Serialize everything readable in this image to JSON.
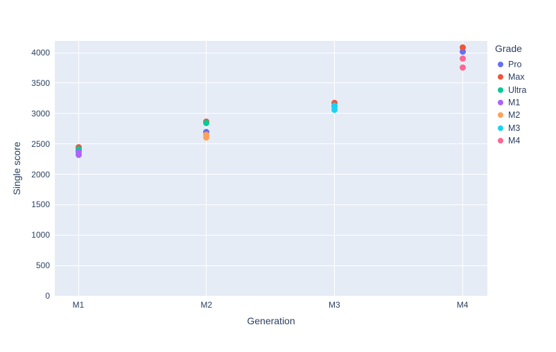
{
  "chart_data": {
    "type": "scatter",
    "title": "",
    "xlabel": "Generation",
    "ylabel": "Single score",
    "categories": [
      "M1",
      "M2",
      "M3",
      "M4"
    ],
    "yticks": [
      0,
      500,
      1000,
      1500,
      2000,
      2500,
      3000,
      3500,
      4000
    ],
    "ylim": [
      0,
      4194
    ],
    "grid": true,
    "legend": {
      "title": "Grade",
      "position": "right",
      "entries": [
        "Pro",
        "Max",
        "Ultra",
        "M1",
        "M2",
        "M3",
        "M4"
      ]
    },
    "series": [
      {
        "name": "Pro",
        "color": "#636EFA",
        "points": [
          [
            "M1",
            2385
          ],
          [
            "M2",
            2690
          ],
          [
            "M3",
            3120
          ],
          [
            "M4",
            4020
          ]
        ]
      },
      {
        "name": "Max",
        "color": "#EF553B",
        "points": [
          [
            "M1",
            2445
          ],
          [
            "M2",
            2870
          ],
          [
            "M3",
            3170
          ],
          [
            "M4",
            4090
          ]
        ]
      },
      {
        "name": "Ultra",
        "color": "#00CC96",
        "points": [
          [
            "M1",
            2412
          ],
          [
            "M2",
            2840
          ]
        ]
      },
      {
        "name": "M1",
        "color": "#AB63FA",
        "points": [
          [
            "M1",
            2360
          ],
          [
            "M1",
            2315
          ]
        ]
      },
      {
        "name": "M2",
        "color": "#FFA15A",
        "points": [
          [
            "M2",
            2650
          ],
          [
            "M2",
            2600
          ]
        ]
      },
      {
        "name": "M3",
        "color": "#19D3F3",
        "points": [
          [
            "M3",
            3130
          ],
          [
            "M3",
            3060
          ]
        ]
      },
      {
        "name": "M4",
        "color": "#FF6692",
        "points": [
          [
            "M4",
            3900
          ],
          [
            "M4",
            3755
          ]
        ]
      }
    ],
    "colors": {
      "plot_bg": "#E5ECF6",
      "grid": "#FFFFFF",
      "text": "#2A3F5F",
      "paper": "#FFFFFF"
    }
  }
}
